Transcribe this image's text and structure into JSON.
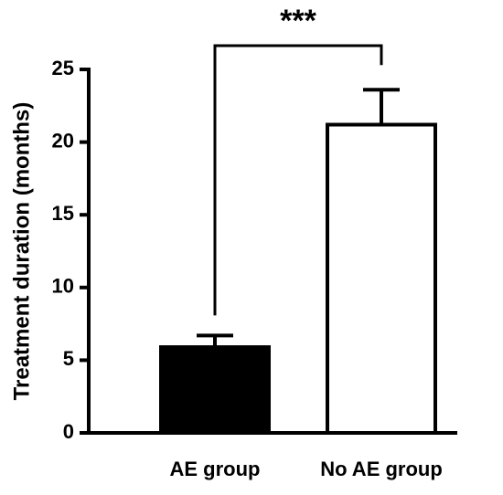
{
  "chart_data": {
    "type": "bar",
    "y_label": "Treatment duration (months)",
    "categories": [
      "AE group",
      "No AE group"
    ],
    "values": [
      5.9,
      21.2
    ],
    "errors": [
      0.8,
      2.4
    ],
    "colors": [
      "#000000",
      "#ffffff"
    ],
    "ylim": [
      0,
      25
    ],
    "yticks": [
      0,
      5,
      10,
      15,
      20,
      25
    ],
    "annotation": "***"
  }
}
